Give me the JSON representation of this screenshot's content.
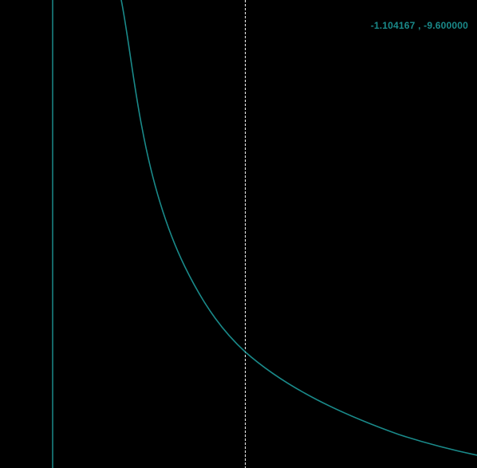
{
  "plot": {
    "background_color": "#000000",
    "curve_color": "#1a8a8a",
    "axis_color": "#1a8a8a",
    "cursor_color": "#ffffff",
    "cursor_style": "dashed",
    "coordinate_readout": "-1.104167 , -9.600000"
  }
}
